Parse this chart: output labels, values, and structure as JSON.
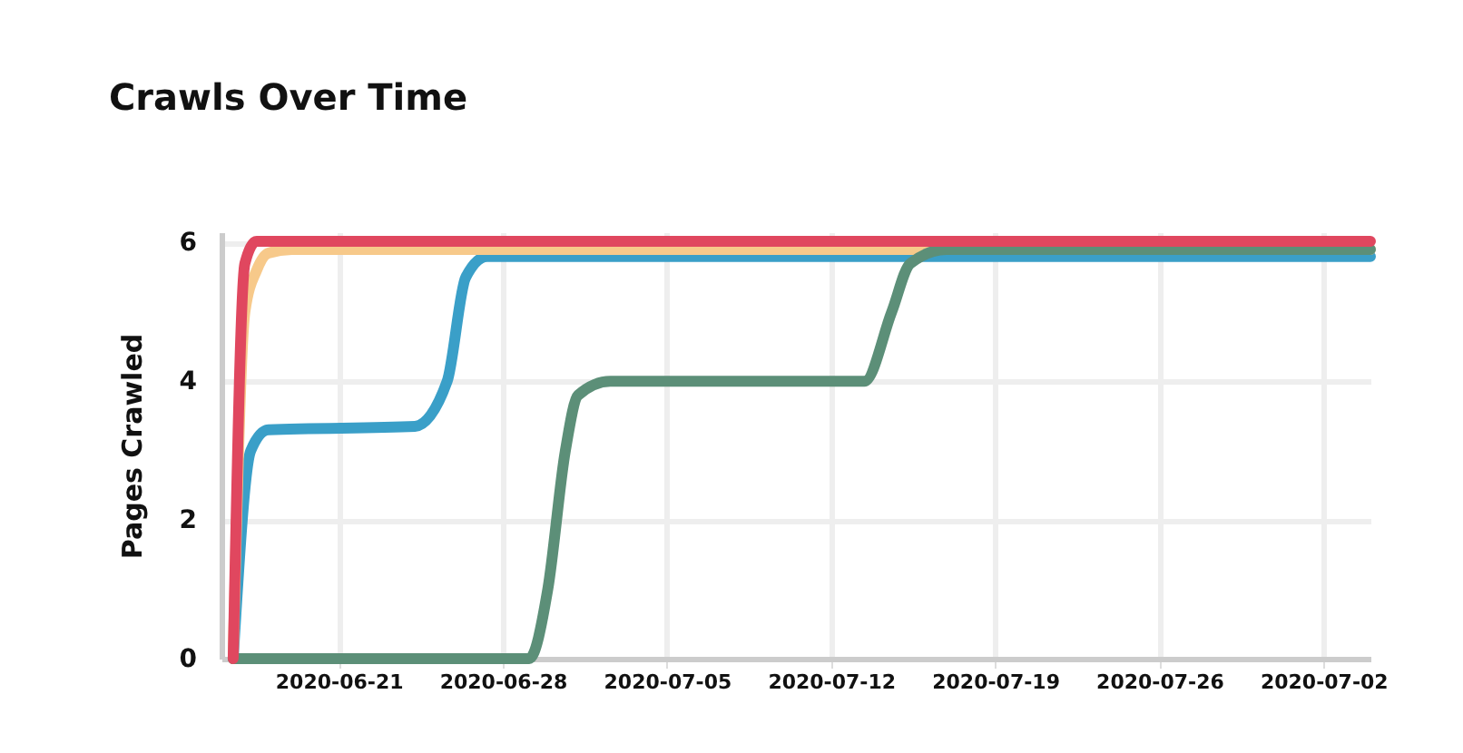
{
  "chart_data": {
    "type": "line",
    "title": "Crawls Over Time",
    "ylabel": "Pages Crawled",
    "xlim": [
      "2020-06-16",
      "2020-08-04"
    ],
    "xticks": [
      "2020-06-21",
      "2020-06-28",
      "2020-07-05",
      "2020-07-12",
      "2020-07-19",
      "2020-07-26",
      {
        "value": "2020-08-02",
        "label": "2020-07-02"
      }
    ],
    "ylim": [
      0,
      6.15
    ],
    "yticks": [
      0,
      2,
      4,
      6
    ],
    "grid": true,
    "line_style": "solid",
    "series": [
      {
        "color": "#3a9fc8",
        "x": [
          "2020-06-16T12:00",
          "2020-06-17T06:00",
          "2020-06-18T00:00",
          "2020-06-24T06:00",
          "2020-06-25T15:00",
          "2020-06-26T10:00",
          "2020-06-27T08:00",
          "2020-08-04T00:00"
        ],
        "values": [
          0,
          3.0,
          3.3,
          3.35,
          4.0,
          5.5,
          5.8,
          5.8
        ]
      },
      {
        "color": "#f7c98a",
        "x": [
          "2020-06-16T12:00",
          "2020-06-17T00:00",
          "2020-06-17T12:00",
          "2020-06-18T00:00",
          "2020-06-19T00:00",
          "2020-08-04T00:00"
        ],
        "values": [
          0,
          5.0,
          5.6,
          5.85,
          5.9,
          5.9
        ]
      },
      {
        "color": "#5c8f78",
        "x": [
          "2020-06-16T12:00",
          "2020-06-29T03:00",
          "2020-06-29T22:00",
          "2020-06-30T16:00",
          "2020-07-01T05:00",
          "2020-07-02T14:00",
          "2020-07-13T10:00",
          "2020-07-14T14:00",
          "2020-07-15T09:00",
          "2020-07-16T22:00",
          "2020-08-04T00:00"
        ],
        "values": [
          0,
          0,
          1,
          3,
          3.8,
          4.0,
          4.0,
          5.0,
          5.7,
          5.9,
          5.9
        ]
      },
      {
        "color": "#e0475f",
        "x": [
          "2020-06-16T12:00",
          "2020-06-17T00:00",
          "2020-06-17T12:00",
          "2020-08-04T00:00"
        ],
        "values": [
          0,
          5.7,
          6.02,
          6.02
        ]
      }
    ]
  }
}
